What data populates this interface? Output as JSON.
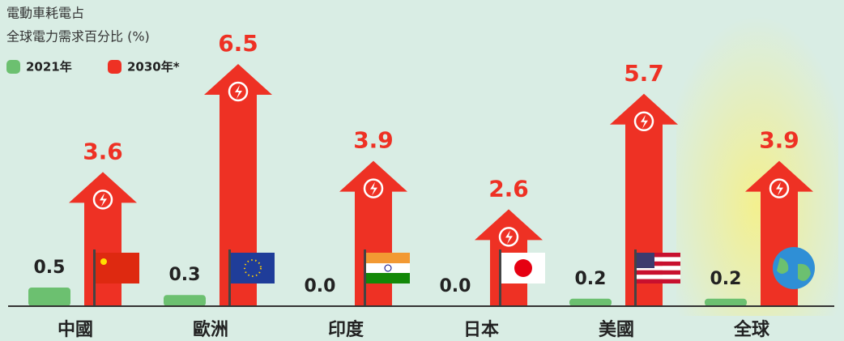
{
  "chart_data": {
    "type": "bar",
    "title": "電動車耗電占",
    "subtitle": "全球電力需求百分比 (%)",
    "categories": [
      "中國",
      "歐洲",
      "印度",
      "日本",
      "美國",
      "全球"
    ],
    "series": [
      {
        "name": "2021年",
        "color": "#6cc070",
        "values": [
          0.5,
          0.3,
          0,
          0,
          0.2,
          0.2
        ],
        "value_labels": [
          "0.5",
          "0.3",
          "0.0",
          "0.0",
          "0.2",
          "0.2"
        ]
      },
      {
        "name": "2030年*",
        "color": "#ee3124",
        "values": [
          3.6,
          6.5,
          3.9,
          2.6,
          5.7,
          3.9
        ],
        "value_labels": [
          "3.6",
          "6.5",
          "3.9",
          "2.6",
          "5.7",
          "3.9"
        ]
      }
    ]
  }
}
